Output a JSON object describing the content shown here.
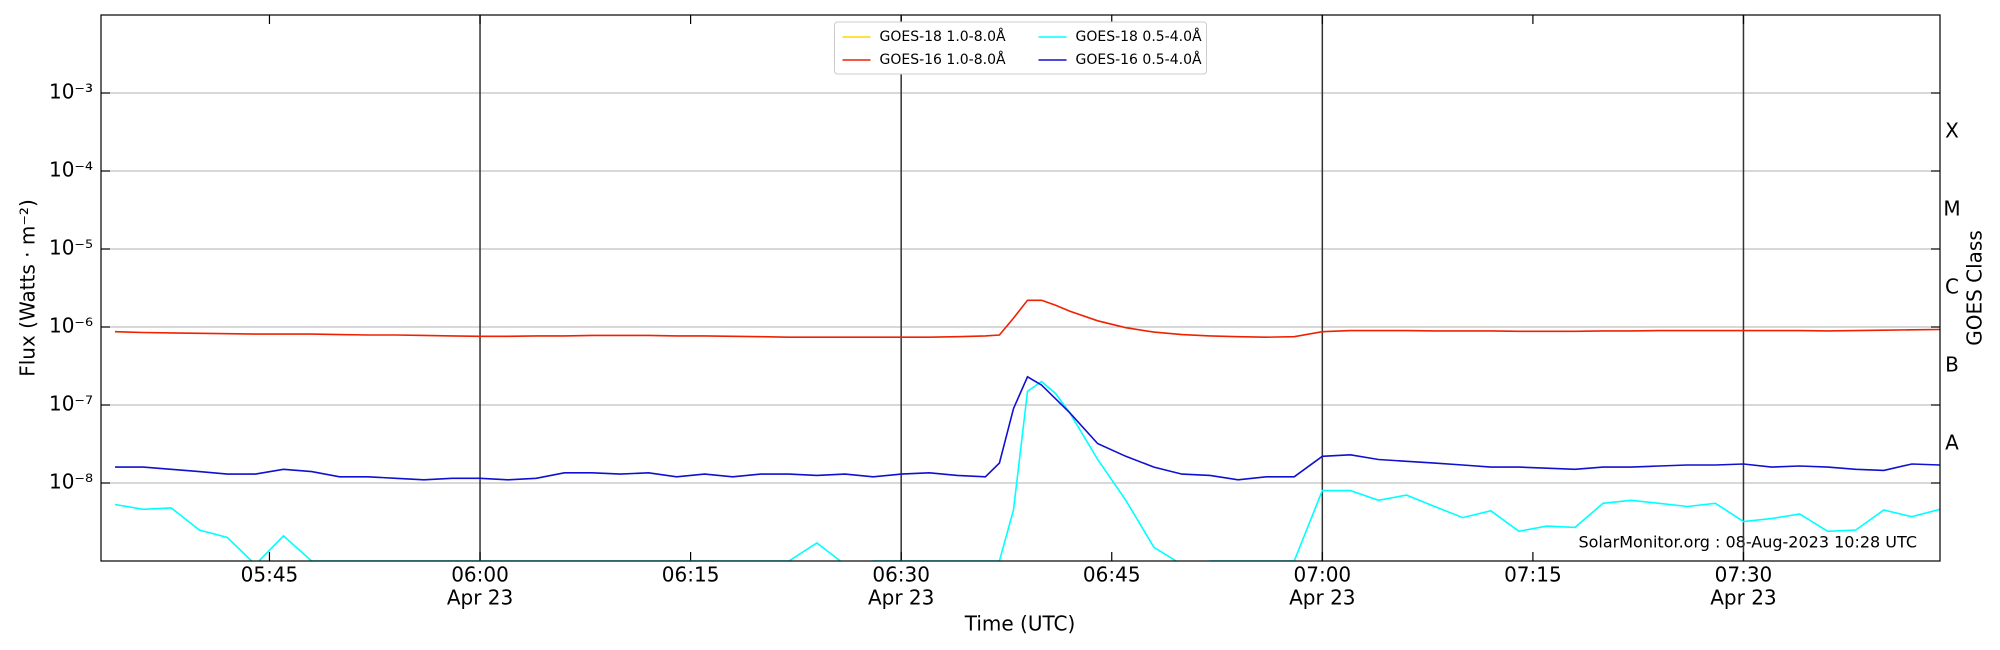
{
  "chart_data": {
    "type": "line",
    "y_label": "Flux (Watts · m⁻²)",
    "x_label": "Time (UTC)",
    "y2_label": "GOES Class",
    "annotation": "SolarMonitor.org : 08-Aug-2023 10:28 UTC",
    "log_y": true,
    "legend": "upper center",
    "xlim": [
      "05:33",
      "07:44"
    ],
    "ylim": [
      1e-09,
      0.01
    ],
    "xticks": [
      "05:45",
      {
        "value": "06:00",
        "label": [
          "06:00",
          "Apr 23"
        ]
      },
      "06:15",
      {
        "value": "06:30",
        "label": [
          "06:30",
          "Apr 23"
        ]
      },
      "06:45",
      {
        "value": "07:00",
        "label": [
          "07:00",
          "Apr 23"
        ]
      },
      "07:15",
      {
        "value": "07:30",
        "label": [
          "07:30",
          "Apr 23"
        ]
      }
    ],
    "yticks": [
      {
        "value": 1e-08,
        "label": "10⁻⁸"
      },
      {
        "value": 1e-07,
        "label": "10⁻⁷"
      },
      {
        "value": 1e-06,
        "label": "10⁻⁶"
      },
      {
        "value": 1e-05,
        "label": "10⁻⁵"
      },
      {
        "value": 0.0001,
        "label": "10⁻⁴"
      },
      {
        "value": 0.001,
        "label": "10⁻³"
      }
    ],
    "class_labels": [
      {
        "value": 3.16e-08,
        "label": "A"
      },
      {
        "value": 3.16e-07,
        "label": "B"
      },
      {
        "value": 3.16e-06,
        "label": "C"
      },
      {
        "value": 3.16e-05,
        "label": "M"
      },
      {
        "value": 0.000316,
        "label": "X"
      }
    ],
    "grid": true,
    "x": [
      "05:34",
      "05:36",
      "05:38",
      "05:40",
      "05:42",
      "05:44",
      "05:46",
      "05:48",
      "05:50",
      "05:52",
      "05:54",
      "05:56",
      "05:58",
      "06:00",
      "06:02",
      "06:04",
      "06:06",
      "06:08",
      "06:10",
      "06:12",
      "06:14",
      "06:16",
      "06:18",
      "06:20",
      "06:22",
      "06:24",
      "06:26",
      "06:28",
      "06:30",
      "06:32",
      "06:34",
      "06:36",
      "06:37",
      "06:38",
      "06:39",
      "06:40",
      "06:41",
      "06:42",
      "06:44",
      "06:46",
      "06:48",
      "06:50",
      "06:52",
      "06:54",
      "06:56",
      "06:58",
      "07:00",
      "07:02",
      "07:04",
      "07:06",
      "07:08",
      "07:10",
      "07:12",
      "07:14",
      "07:16",
      "07:18",
      "07:20",
      "07:22",
      "07:24",
      "07:26",
      "07:28",
      "07:30",
      "07:32",
      "07:34",
      "07:36",
      "07:38",
      "07:40",
      "07:42",
      "07:44"
    ],
    "series": [
      {
        "name": "GOES-18 1.0-8.0Å",
        "color": "#ffd700",
        "values": [
          null,
          null,
          null,
          null,
          null,
          null,
          null,
          null,
          null,
          null,
          null,
          null,
          null,
          null,
          null,
          null,
          null,
          null,
          null,
          null,
          null,
          null,
          null,
          null,
          null,
          null,
          null,
          null,
          null,
          null,
          null,
          null,
          null,
          null,
          null,
          null,
          null,
          null,
          null,
          null,
          null,
          null,
          null,
          null,
          null,
          null,
          null,
          null,
          null,
          null,
          null,
          null,
          null,
          null,
          null,
          null,
          null,
          null,
          null,
          null,
          null,
          null,
          null,
          null,
          null,
          null,
          null,
          null,
          null
        ]
      },
      {
        "name": "GOES-16 1.0-8.0Å",
        "color": "#ee2200",
        "values": [
          8.7e-07,
          8.5e-07,
          8.4e-07,
          8.3e-07,
          8.2e-07,
          8.1e-07,
          8.1e-07,
          8.1e-07,
          8e-07,
          7.9e-07,
          7.9e-07,
          7.8e-07,
          7.7e-07,
          7.6e-07,
          7.6e-07,
          7.7e-07,
          7.7e-07,
          7.8e-07,
          7.8e-07,
          7.8e-07,
          7.7e-07,
          7.7e-07,
          7.6e-07,
          7.5e-07,
          7.4e-07,
          7.4e-07,
          7.4e-07,
          7.4e-07,
          7.4e-07,
          7.4e-07,
          7.5e-07,
          7.7e-07,
          7.9e-07,
          1.3e-06,
          2.2e-06,
          2.2e-06,
          1.9e-06,
          1.6e-06,
          1.2e-06,
          9.8e-07,
          8.6e-07,
          8e-07,
          7.7e-07,
          7.5e-07,
          7.4e-07,
          7.5e-07,
          8.7e-07,
          9e-07,
          9e-07,
          9e-07,
          8.9e-07,
          8.9e-07,
          8.9e-07,
          8.8e-07,
          8.8e-07,
          8.8e-07,
          8.9e-07,
          8.9e-07,
          9e-07,
          9e-07,
          9e-07,
          9e-07,
          9e-07,
          9e-07,
          8.9e-07,
          9e-07,
          9.1e-07,
          9.2e-07,
          9.3e-07
        ]
      },
      {
        "name": "GOES-18 0.5-4.0Å",
        "color": "#00ffff",
        "values": [
          5.3e-09,
          4.6e-09,
          4.8e-09,
          2.5e-09,
          2e-09,
          9e-10,
          2.1e-09,
          1e-09,
          1e-09,
          1e-09,
          1e-09,
          1e-09,
          1e-09,
          1e-09,
          1e-09,
          1e-09,
          1e-09,
          1e-09,
          1e-09,
          1e-09,
          1e-09,
          1e-09,
          1e-09,
          1e-09,
          1e-09,
          1.7e-09,
          9e-10,
          1e-09,
          1e-09,
          1e-09,
          1e-09,
          1e-09,
          1e-09,
          4.5e-09,
          1.5e-07,
          2e-07,
          1.4e-07,
          8e-08,
          2e-08,
          6e-09,
          1.5e-09,
          9e-10,
          1e-09,
          1e-09,
          1e-09,
          1e-09,
          8e-09,
          8e-09,
          6e-09,
          7e-09,
          5e-09,
          3.6e-09,
          4.4e-09,
          2.4e-09,
          2.8e-09,
          2.7e-09,
          5.5e-09,
          6e-09,
          5.5e-09,
          5e-09,
          5.5e-09,
          3.2e-09,
          3.5e-09,
          4e-09,
          2.4e-09,
          2.5e-09,
          4.5e-09,
          3.7e-09,
          4.6e-09
        ]
      },
      {
        "name": "GOES-16 0.5-4.0Å",
        "color": "#1010d0",
        "values": [
          1.6e-08,
          1.6e-08,
          1.5e-08,
          1.4e-08,
          1.3e-08,
          1.3e-08,
          1.5e-08,
          1.4e-08,
          1.2e-08,
          1.2e-08,
          1.15e-08,
          1.1e-08,
          1.15e-08,
          1.15e-08,
          1.1e-08,
          1.15e-08,
          1.35e-08,
          1.35e-08,
          1.3e-08,
          1.35e-08,
          1.2e-08,
          1.3e-08,
          1.2e-08,
          1.3e-08,
          1.3e-08,
          1.25e-08,
          1.3e-08,
          1.2e-08,
          1.3e-08,
          1.35e-08,
          1.25e-08,
          1.2e-08,
          1.8e-08,
          9e-08,
          2.3e-07,
          1.8e-07,
          1.2e-07,
          8e-08,
          3.2e-08,
          2.2e-08,
          1.6e-08,
          1.3e-08,
          1.25e-08,
          1.1e-08,
          1.2e-08,
          1.2e-08,
          2.2e-08,
          2.3e-08,
          2e-08,
          1.9e-08,
          1.8e-08,
          1.7e-08,
          1.6e-08,
          1.6e-08,
          1.55e-08,
          1.5e-08,
          1.6e-08,
          1.6e-08,
          1.65e-08,
          1.7e-08,
          1.7e-08,
          1.75e-08,
          1.6e-08,
          1.65e-08,
          1.6e-08,
          1.5e-08,
          1.45e-08,
          1.75e-08,
          1.7e-08
        ]
      }
    ]
  }
}
